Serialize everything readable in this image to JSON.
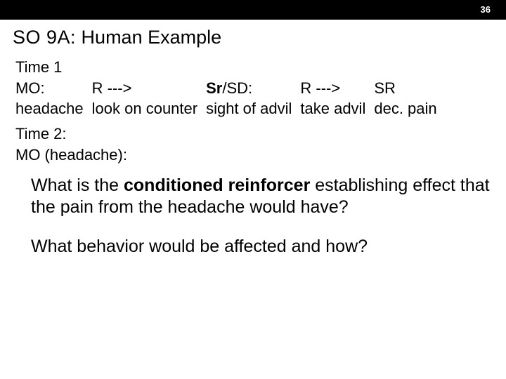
{
  "slide_number": "36",
  "title": {
    "prefix": "SO 9A:",
    "text": " Human Example"
  },
  "sequence": {
    "time1_label": "Time 1",
    "row1": {
      "c1": "MO:",
      "c2": "R   --->",
      "c3_bold": "Sr",
      "c3_rest": "/SD:",
      "c4": "R    --->",
      "c5": "  SR"
    },
    "row2": {
      "c1": "headache",
      "c2": "look on counter",
      "c3": " sight of advil",
      "c4": "take advil",
      "c5": "dec. pain"
    },
    "time2": "Time 2:",
    "mo_headache": "MO (headache):"
  },
  "questions": {
    "q1_pre": "What is the ",
    "q1_bold": "conditioned reinforcer",
    "q1_post": " establishing effect that the pain from the headache would have?",
    "q2": "What behavior would be affected and how?"
  },
  "colors": {
    "topbar_bg": "#000000",
    "text": "#000000",
    "page_bg": "#ffffff",
    "slide_num": "#ffffff"
  }
}
